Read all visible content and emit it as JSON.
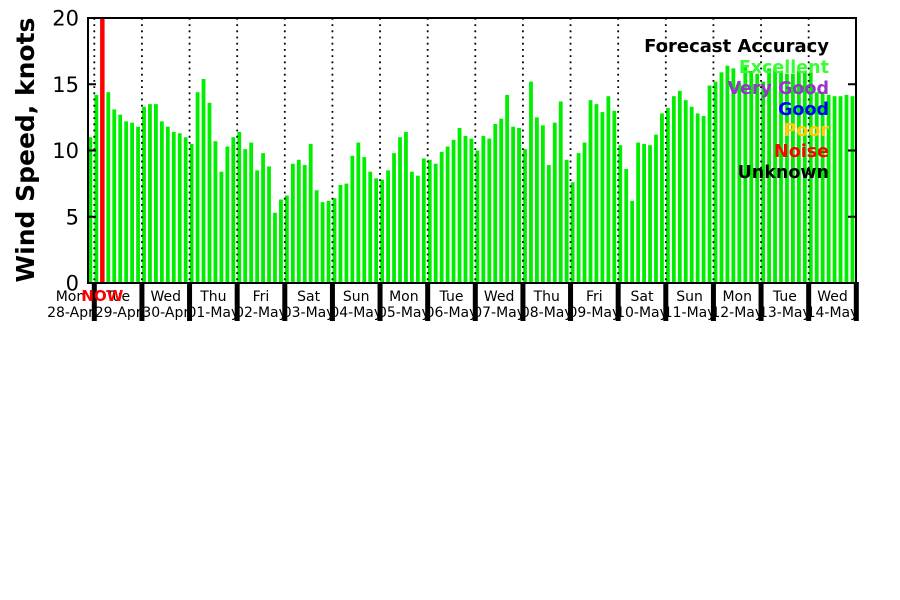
{
  "page": {
    "background": "#ffffff"
  },
  "chart_data": {
    "type": "bar",
    "title": "",
    "ylabel": "Wind Speed, knots",
    "xlabel": "",
    "ylim": [
      0,
      20
    ],
    "yticks": [
      0,
      5,
      10,
      15,
      20
    ],
    "bars_per_day": 8,
    "bar_color": "#00ee00",
    "grid": "vertical dotted lines at day boundaries",
    "legend_position": "top-right, right-aligned text",
    "legend": {
      "title": "Forecast Accuracy",
      "title_color": "#000000",
      "items": [
        {
          "label": "Excellent",
          "color": "#33ff33"
        },
        {
          "label": "Very Good",
          "color": "#9933cc"
        },
        {
          "label": "Good",
          "color": "#0000ff"
        },
        {
          "label": "Poor",
          "color": "#ffcc00"
        },
        {
          "label": "Noise",
          "color": "#ff0000"
        },
        {
          "label": "Unknown",
          "color": "#000000"
        }
      ]
    },
    "now_marker": {
      "label": "NOW",
      "color": "#ff0000",
      "position": "early Tue 29-Apr"
    },
    "categories": [
      "Mon 28-Apr",
      "Tue 29-Apr",
      "Wed 30-Apr",
      "Thu 01-May",
      "Fri 02-May",
      "Sat 03-May",
      "Sun 04-May",
      "Mon 05-May",
      "Tue 06-May",
      "Wed 07-May",
      "Thu 08-May",
      "Fri 09-May",
      "Sat 10-May",
      "Sun 11-May",
      "Mon 12-May",
      "Tue 13-May",
      "Wed 14-May"
    ],
    "days": [
      {
        "name": "Mon",
        "date": "28-Apr",
        "values": [
          11.0
        ]
      },
      {
        "name": "Tue",
        "date": "29-Apr",
        "values": [
          14.2,
          14.3,
          14.4,
          13.1,
          12.7,
          12.2,
          12.1,
          11.8
        ]
      },
      {
        "name": "Wed",
        "date": "30-Apr",
        "values": [
          13.3,
          13.5,
          13.5,
          12.2,
          11.8,
          11.4,
          11.3,
          11.0
        ]
      },
      {
        "name": "Thu",
        "date": "01-May",
        "values": [
          10.5,
          14.4,
          15.4,
          13.6,
          10.7,
          8.4,
          10.3,
          11.0
        ]
      },
      {
        "name": "Fri",
        "date": "02-May",
        "values": [
          11.4,
          10.1,
          10.6,
          8.5,
          9.8,
          8.8,
          5.3,
          6.3
        ]
      },
      {
        "name": "Sat",
        "date": "03-May",
        "values": [
          6.6,
          9.0,
          9.3,
          8.9,
          10.5,
          7.0,
          6.1,
          6.2
        ]
      },
      {
        "name": "Sun",
        "date": "04-May",
        "values": [
          6.4,
          7.4,
          7.5,
          9.6,
          10.6,
          9.5,
          8.4,
          7.9
        ]
      },
      {
        "name": "Mon",
        "date": "05-May",
        "values": [
          7.8,
          8.5,
          9.8,
          11.0,
          11.4,
          8.4,
          8.1,
          9.4
        ]
      },
      {
        "name": "Tue",
        "date": "06-May",
        "values": [
          9.3,
          9.0,
          9.9,
          10.3,
          10.8,
          11.7,
          11.1,
          10.9
        ]
      },
      {
        "name": "Wed",
        "date": "07-May",
        "values": [
          10.0,
          11.1,
          10.9,
          12.0,
          12.4,
          14.2,
          11.8,
          11.7
        ]
      },
      {
        "name": "Thu",
        "date": "08-May",
        "values": [
          10.1,
          15.2,
          12.5,
          11.9,
          8.9,
          12.1,
          13.7,
          9.3
        ]
      },
      {
        "name": "Fri",
        "date": "09-May",
        "values": [
          7.6,
          9.8,
          10.6,
          13.8,
          13.5,
          12.9,
          14.1,
          13.0
        ]
      },
      {
        "name": "Sat",
        "date": "10-May",
        "values": [
          10.4,
          8.6,
          6.2,
          10.6,
          10.5,
          10.4,
          11.2,
          12.8
        ]
      },
      {
        "name": "Sun",
        "date": "11-May",
        "values": [
          13.2,
          14.1,
          14.5,
          13.8,
          13.3,
          12.8,
          12.6,
          14.9
        ]
      },
      {
        "name": "Mon",
        "date": "12-May",
        "values": [
          15.2,
          15.9,
          16.4,
          16.2,
          15.1,
          16.3,
          16.0,
          15.8
        ]
      },
      {
        "name": "Tue",
        "date": "13-May",
        "values": [
          15.2,
          16.2,
          16.1,
          16.0,
          15.8,
          15.8,
          16.0,
          16.0
        ]
      },
      {
        "name": "Wed",
        "date": "14-May",
        "values": [
          15.9,
          14.4,
          14.3,
          14.2,
          14.1,
          14.1,
          14.2,
          14.1
        ]
      }
    ]
  }
}
